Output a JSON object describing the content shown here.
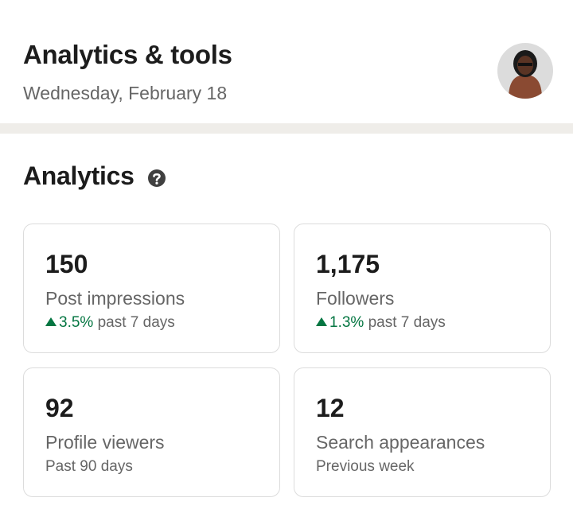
{
  "header": {
    "title": "Analytics & tools",
    "date": "Wednesday, February 18"
  },
  "section": {
    "title": "Analytics"
  },
  "cards": [
    {
      "value": "150",
      "label": "Post impressions",
      "change": "3.5%",
      "period": "past 7 days"
    },
    {
      "value": "1,175",
      "label": "Followers",
      "change": "1.3%",
      "period": "past 7 days"
    },
    {
      "value": "92",
      "label": "Profile viewers",
      "period": "Past 90 days"
    },
    {
      "value": "12",
      "label": "Search appearances",
      "period": "Previous week"
    }
  ]
}
